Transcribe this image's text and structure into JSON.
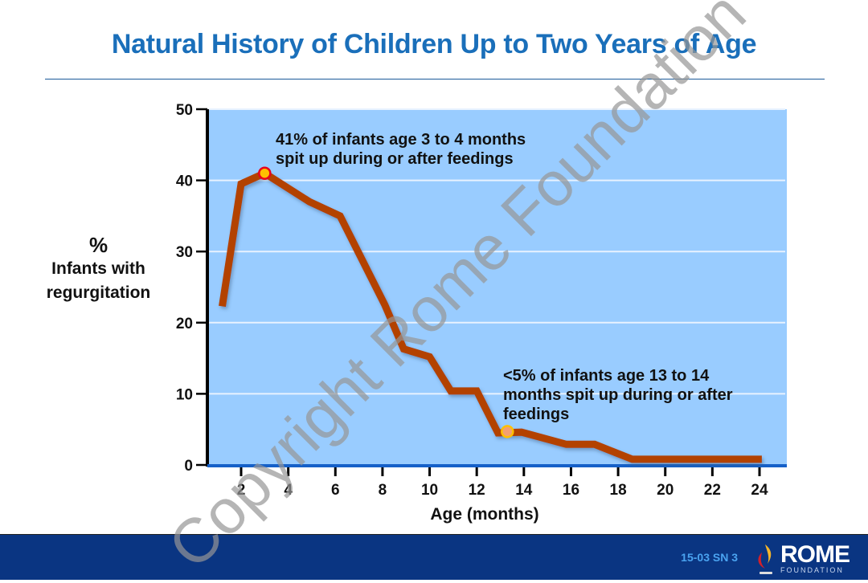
{
  "slide": {
    "title": "Natural History of Children Up to Two Years of Age",
    "footer_code": "15-03  SN 3",
    "logo_word": "ROME",
    "logo_sub": "FOUNDATION",
    "watermark": "Copyright Rome Foundation",
    "colors": {
      "title": "#1a6fba",
      "plot_bg": "#99ccff",
      "line": "#b34200",
      "footer": "#0a3582",
      "axis_bottom": "#1560c8"
    }
  },
  "chart_data": {
    "type": "line",
    "title": "Natural History of Children Up to Two Years of Age",
    "xlabel": "Age (months)",
    "ylabel_symbol": "%",
    "ylabel": "Infants with regurgitation",
    "xlim": [
      1,
      25
    ],
    "ylim": [
      0,
      50
    ],
    "xticks": [
      2,
      4,
      6,
      8,
      10,
      12,
      14,
      16,
      18,
      20,
      22,
      24
    ],
    "yticks": [
      0,
      10,
      20,
      30,
      40,
      50
    ],
    "grid": "horizontal",
    "series": [
      {
        "name": "Infants with regurgitation",
        "x": [
          1.2,
          2,
          3,
          4.9,
          6.2,
          8.1,
          8.9,
          10,
          10.9,
          12,
          12.9,
          13.9,
          15.8,
          17,
          18.6,
          24.1
        ],
        "y": [
          22.3,
          39.5,
          41,
          37,
          35,
          22.5,
          16.3,
          15.2,
          10.4,
          10.4,
          4.5,
          4.6,
          2.9,
          2.9,
          0.8,
          0.8
        ]
      }
    ],
    "markers": [
      {
        "name": "peak-marker",
        "x": 3,
        "y": 41,
        "fill": "#ffc000",
        "stroke": "#e8001c"
      },
      {
        "name": "low-marker",
        "x": 13.3,
        "y": 4.7,
        "fill": "#f4a070",
        "stroke": "#ffc000"
      }
    ],
    "annotations": [
      {
        "line1": "41% of infants age 3 to 4 months",
        "line2": "spit up during or after feedings"
      },
      {
        "line1": "<5% of infants age 13 to 14",
        "line2": "months spit up during or after",
        "line3": "feedings"
      }
    ]
  }
}
